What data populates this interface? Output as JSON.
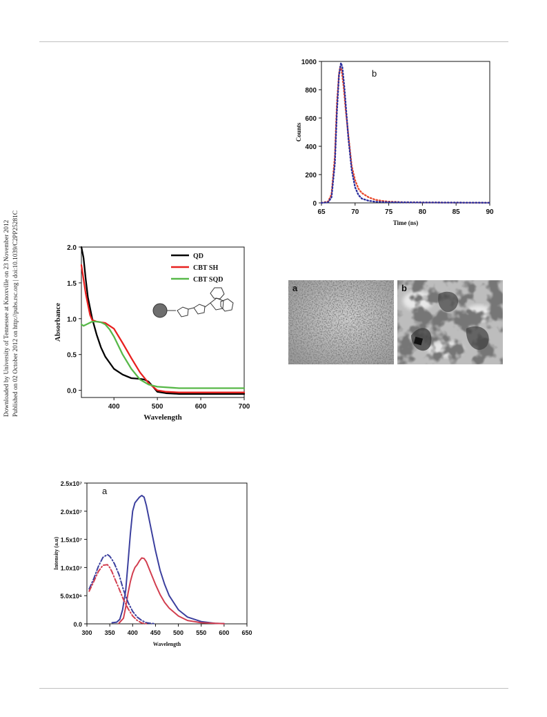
{
  "side_notes": {
    "line1": "Downloaded by University of Tennessee at Knoxville on 23 November 2012",
    "line2": "Published on 02 October 2012 on http://pubs.rsc.org | doi:10.1039/C2PP25281C"
  },
  "tem": {
    "panel_a_label": "a",
    "panel_b_label": "b"
  },
  "chart_data": [
    {
      "id": "decay",
      "type": "line",
      "panel_label": "b",
      "xlabel": "Time (ns)",
      "ylabel": "Counts",
      "xlim": [
        65,
        90
      ],
      "ylim": [
        0,
        1000
      ],
      "xticks": [
        65,
        70,
        75,
        80,
        85,
        90
      ],
      "yticks": [
        0,
        200,
        400,
        600,
        800,
        1000
      ],
      "series": [
        {
          "color": "#e84a2e",
          "style": "dotted",
          "x": [
            65,
            66,
            66.5,
            67,
            67.3,
            67.6,
            67.8,
            68.0,
            68.3,
            68.6,
            69,
            69.5,
            70,
            70.5,
            71,
            72,
            73,
            74,
            75,
            77,
            80,
            85,
            90
          ],
          "y": [
            0,
            10,
            60,
            330,
            700,
            910,
            965,
            935,
            820,
            660,
            480,
            260,
            160,
            100,
            70,
            40,
            22,
            14,
            9,
            5,
            3,
            2,
            1
          ]
        },
        {
          "color": "#2b2f9e",
          "style": "dotted",
          "x": [
            65,
            66,
            66.5,
            67,
            67.3,
            67.6,
            67.9,
            68.1,
            68.4,
            68.7,
            69,
            69.5,
            70,
            70.5,
            71,
            72,
            73,
            75,
            80,
            85,
            90
          ],
          "y": [
            0,
            5,
            40,
            280,
            640,
            900,
            990,
            960,
            820,
            640,
            460,
            230,
            110,
            55,
            30,
            15,
            8,
            5,
            3,
            2,
            1
          ]
        }
      ]
    },
    {
      "id": "absorbance",
      "type": "line",
      "xlabel": "Wavelength",
      "ylabel": "Absorbance",
      "xlim": [
        325,
        700
      ],
      "ylim": [
        -0.1,
        2.0
      ],
      "xticks": [
        400,
        500,
        600,
        700
      ],
      "yticks": [
        0.0,
        0.5,
        1.0,
        1.5,
        2.0
      ],
      "ytick_labels": [
        "0.0",
        "0.5",
        "1.0",
        "1.5",
        "2.0"
      ],
      "legend": "top-right",
      "series": [
        {
          "name": "QD",
          "color": "#000000",
          "x": [
            325,
            330,
            335,
            340,
            350,
            360,
            370,
            380,
            400,
            420,
            440,
            460,
            470,
            480,
            490,
            500,
            520,
            550,
            600,
            700
          ],
          "y": [
            2.0,
            1.85,
            1.55,
            1.3,
            1.0,
            0.78,
            0.6,
            0.47,
            0.3,
            0.22,
            0.17,
            0.16,
            0.15,
            0.12,
            0.05,
            -0.02,
            -0.04,
            -0.05,
            -0.05,
            -0.05
          ]
        },
        {
          "name": "CBT SH",
          "color": "#e8201f",
          "x": [
            325,
            330,
            335,
            340,
            345,
            350,
            360,
            380,
            400,
            420,
            440,
            460,
            480,
            500,
            520,
            550,
            600,
            700
          ],
          "y": [
            1.75,
            1.55,
            1.35,
            1.2,
            1.05,
            0.98,
            0.96,
            0.94,
            0.86,
            0.66,
            0.45,
            0.25,
            0.1,
            0.0,
            -0.02,
            -0.03,
            -0.03,
            -0.03
          ]
        },
        {
          "name": "CBT SQD",
          "color": "#57b848",
          "x": [
            325,
            330,
            340,
            350,
            360,
            370,
            380,
            390,
            400,
            420,
            440,
            460,
            480,
            500,
            550,
            600,
            700
          ],
          "y": [
            0.92,
            0.9,
            0.93,
            0.96,
            0.96,
            0.95,
            0.92,
            0.85,
            0.75,
            0.5,
            0.3,
            0.15,
            0.08,
            0.05,
            0.03,
            0.03,
            0.03
          ]
        }
      ]
    },
    {
      "id": "emission",
      "type": "line",
      "panel_label": "a",
      "xlabel": "Wavelength",
      "ylabel": "Intensity (a.u)",
      "xlim": [
        300,
        650
      ],
      "ylim": [
        0,
        25000000
      ],
      "xticks": [
        300,
        350,
        400,
        450,
        500,
        550,
        600,
        650
      ],
      "yticks": [
        0,
        5000000,
        10000000,
        15000000,
        20000000,
        25000000
      ],
      "ytick_labels": [
        "0.0",
        "5.0x10⁶",
        "1.0x10⁷",
        "1.5x10⁷",
        "2.0x10⁷",
        "2.5x10⁷"
      ],
      "series": [
        {
          "color": "#3b3f9e",
          "style": "solid",
          "x": [
            355,
            365,
            372,
            378,
            385,
            390,
            395,
            400,
            405,
            410,
            415,
            420,
            425,
            430,
            440,
            450,
            460,
            470,
            480,
            500,
            520,
            550,
            580,
            600
          ],
          "y": [
            200000,
            300000,
            800000,
            2500000,
            6000000,
            11000000,
            16000000,
            20000000,
            21500000,
            22000000,
            22500000,
            22800000,
            22500000,
            21000000,
            17000000,
            13000000,
            9500000,
            7000000,
            5000000,
            2500000,
            1200000,
            400000,
            100000,
            50000
          ]
        },
        {
          "color": "#d23e4f",
          "style": "solid",
          "x": [
            370,
            380,
            385,
            390,
            395,
            400,
            405,
            410,
            415,
            420,
            425,
            430,
            440,
            450,
            460,
            470,
            480,
            500,
            520,
            550,
            580,
            600
          ],
          "y": [
            100000,
            1000000,
            3000000,
            5500000,
            7500000,
            9000000,
            10000000,
            10500000,
            11200000,
            11700000,
            11600000,
            11000000,
            9000000,
            7000000,
            5200000,
            3800000,
            2800000,
            1400000,
            600000,
            200000,
            80000,
            40000
          ]
        },
        {
          "color": "#3b3f9e",
          "style": "dashdot",
          "x": [
            305,
            315,
            325,
            335,
            345,
            350,
            355,
            360,
            370,
            380,
            390,
            400,
            410,
            420,
            430,
            440,
            450
          ],
          "y": [
            6200000,
            8000000,
            10200000,
            11800000,
            12300000,
            12000000,
            11400000,
            10700000,
            8800000,
            6000000,
            3800000,
            2200000,
            1200000,
            600000,
            200000,
            80000,
            20000
          ]
        },
        {
          "color": "#d23e4f",
          "style": "dashdot",
          "x": [
            305,
            315,
            325,
            335,
            345,
            350,
            355,
            360,
            370,
            380,
            390,
            400,
            410,
            420,
            430
          ],
          "y": [
            5800000,
            7500000,
            9300000,
            10400000,
            10500000,
            10000000,
            9200000,
            8200000,
            6300000,
            4300000,
            2700000,
            1400000,
            600000,
            150000,
            30000
          ]
        }
      ]
    }
  ]
}
